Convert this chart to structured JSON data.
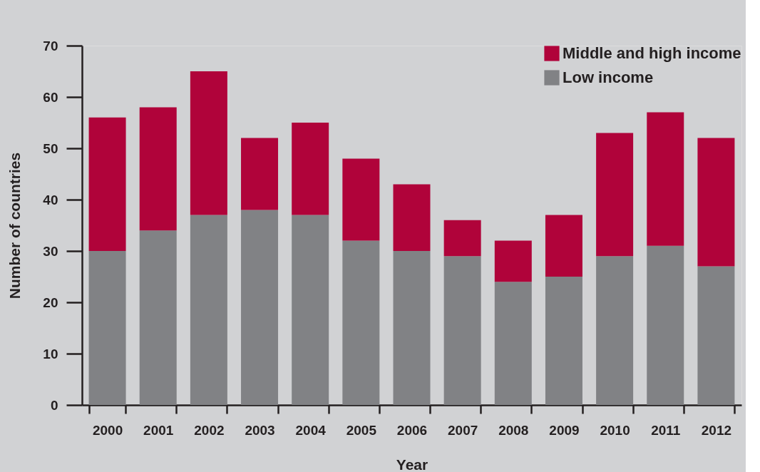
{
  "chart_data": {
    "type": "bar",
    "stacked": true,
    "xlabel": "Year",
    "ylabel": "Number of countries",
    "categories": [
      "2000",
      "2001",
      "2002",
      "2003",
      "2004",
      "2005",
      "2006",
      "2007",
      "2008",
      "2009",
      "2010",
      "2011",
      "2012"
    ],
    "series": [
      {
        "name": "Low income",
        "color": "#818285",
        "values": [
          30,
          34,
          37,
          38,
          37,
          32,
          30,
          29,
          24,
          25,
          29,
          31,
          27
        ]
      },
      {
        "name": "Middle and high income",
        "color": "#b0033a",
        "values": [
          26,
          24,
          28,
          14,
          18,
          16,
          13,
          7,
          8,
          12,
          24,
          26,
          25
        ]
      }
    ],
    "ylim": [
      0,
      70
    ],
    "yticks": [
      0,
      10,
      20,
      30,
      40,
      50,
      60,
      70
    ],
    "grid": false,
    "legend": "top right"
  }
}
